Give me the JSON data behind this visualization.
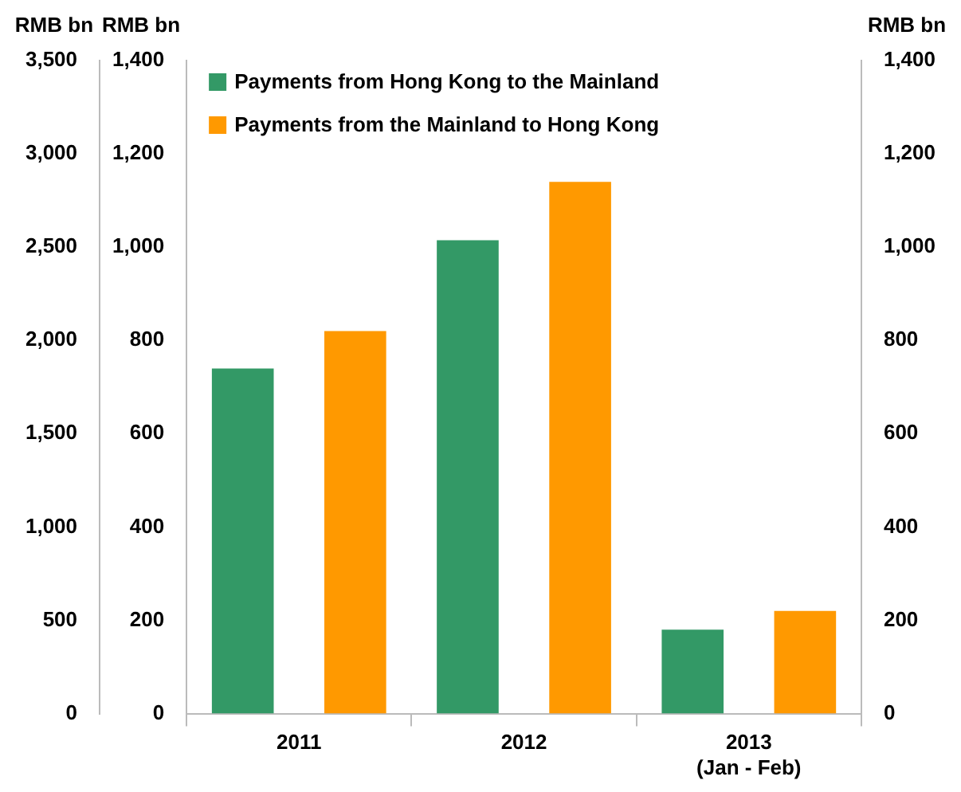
{
  "chart_data": {
    "type": "bar",
    "categories": [
      "2011",
      "2012",
      "2013\n(Jan - Feb)"
    ],
    "series": [
      {
        "name": "Payments from Hong Kong to the Mainland",
        "color": "#339966",
        "values": [
          740,
          1015,
          180
        ]
      },
      {
        "name": "Payments from the Mainland to Hong Kong",
        "color": "#ff9900",
        "values": [
          820,
          1140,
          220
        ]
      }
    ],
    "ylabel": "RMB bn",
    "y2label": "RMB bn",
    "y3label": "RMB bn",
    "ylim": [
      0,
      1400
    ],
    "yticks": [
      0,
      200,
      400,
      600,
      800,
      {
        "value": 1000,
        "label": "1,000"
      },
      {
        "value": 1200,
        "label": "1,200"
      },
      {
        "value": 1400,
        "label": "1,400"
      }
    ],
    "y2lim": [
      0,
      1400
    ],
    "y2ticks": [
      0,
      200,
      400,
      600,
      800,
      {
        "value": 1000,
        "label": "1,000"
      },
      {
        "value": 1200,
        "label": "1,200"
      },
      {
        "value": 1400,
        "label": "1,400"
      }
    ],
    "y3lim": [
      0,
      3500
    ],
    "y3ticks": [
      0,
      500,
      {
        "value": 1000,
        "label": "1,000"
      },
      {
        "value": 1500,
        "label": "1,500"
      },
      {
        "value": 2000,
        "label": "2,000"
      },
      {
        "value": 2500,
        "label": "2,500"
      },
      {
        "value": 3000,
        "label": "3,000"
      },
      {
        "value": 3500,
        "label": "3,500"
      }
    ],
    "legend": "top left",
    "grid": false
  }
}
